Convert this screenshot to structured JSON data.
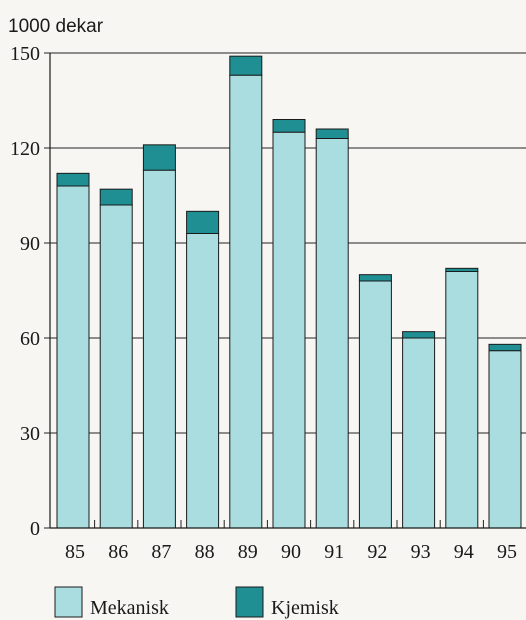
{
  "chart_data": {
    "type": "bar",
    "stacked": true,
    "unit_label": "1000 dekar",
    "categories": [
      "85",
      "86",
      "87",
      "88",
      "89",
      "90",
      "91",
      "92",
      "93",
      "94",
      "95"
    ],
    "series": [
      {
        "name": "Mekanisk",
        "values": [
          108,
          102,
          113,
          93,
          143,
          125,
          123,
          78,
          60,
          81,
          56
        ],
        "color": "#a9dde0"
      },
      {
        "name": "Kjemisk",
        "values": [
          4,
          5,
          8,
          7,
          6,
          4,
          3,
          2,
          2,
          1,
          2
        ],
        "color": "#1f8f94"
      }
    ],
    "y_ticks": [
      "0",
      "30",
      "60",
      "90",
      "120",
      "150"
    ],
    "ylim": [
      0,
      150
    ],
    "grid": true,
    "legend_position": "bottom"
  }
}
